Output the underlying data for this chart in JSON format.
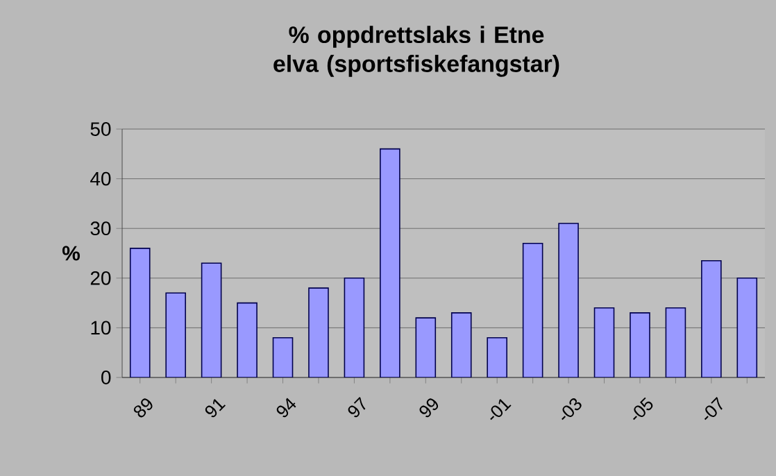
{
  "chart_data": {
    "type": "bar",
    "title": "% oppdrettslaks i Etne elva (sportsfiskefangstar)",
    "ylabel": "%",
    "categories": [
      "89",
      null,
      "91",
      null,
      "94",
      null,
      "97",
      null,
      "99",
      null,
      "-01",
      null,
      "-03",
      null,
      "-05",
      null,
      "-07",
      null
    ],
    "values": [
      26,
      17,
      23,
      15,
      8,
      18,
      20,
      46,
      12,
      13,
      8,
      27,
      31,
      14,
      13,
      14,
      23.5,
      20
    ],
    "color": "#9999ff",
    "ylim": [
      0,
      50
    ],
    "yticks": [
      0,
      10,
      20,
      30,
      40,
      50
    ],
    "grid": "y"
  }
}
